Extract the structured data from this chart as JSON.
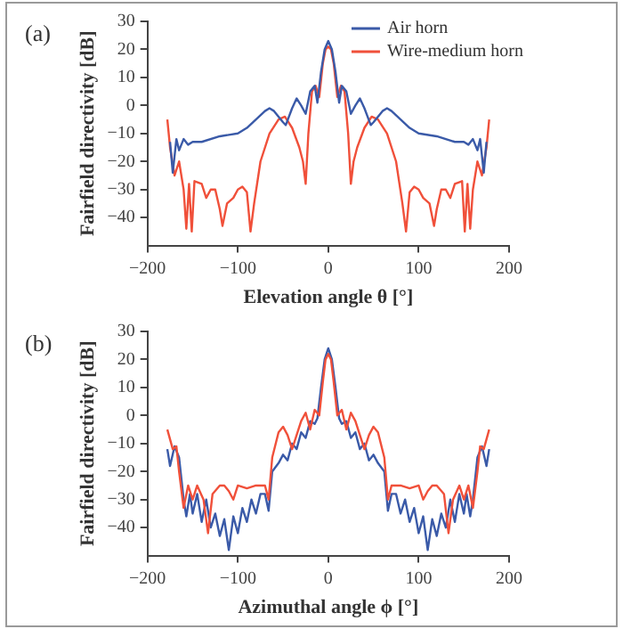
{
  "chart_data": [
    {
      "type": "line",
      "annotations": [
        "(a)"
      ],
      "xlabel": "Elevation angle θ [°]",
      "ylabel": "Fairfield directivity [dB]",
      "xlim": [
        -200,
        200
      ],
      "xticks": [
        -200,
        -100,
        0,
        100,
        200
      ],
      "ylim": [
        -50,
        30
      ],
      "yticks": [
        -40,
        -30,
        -20,
        -10,
        0,
        10,
        20,
        30
      ],
      "legend": "top right",
      "grid": false,
      "series": [
        {
          "name": "Air horn",
          "color": "#3a5aa8",
          "x": [
            -175,
            -172,
            -168,
            -165,
            -160,
            -155,
            -150,
            -140,
            -120,
            -100,
            -90,
            -80,
            -70,
            -65,
            -60,
            -50,
            -47,
            -40,
            -35,
            -30,
            -25,
            -20,
            -15,
            -12,
            -8,
            -4,
            0,
            4,
            8,
            12,
            15,
            20,
            25,
            30,
            35,
            40,
            47,
            50,
            60,
            65,
            70,
            80,
            90,
            100,
            120,
            140,
            150,
            155,
            160,
            165,
            168,
            172,
            175
          ],
          "values": [
            -13,
            -24,
            -12,
            -16,
            -12,
            -14,
            -13,
            -13,
            -11,
            -10,
            -8,
            -5,
            -2,
            -1,
            -2,
            -6,
            -7,
            -1,
            2.5,
            0,
            -3,
            5,
            7,
            1,
            12,
            20,
            23,
            20,
            12,
            1,
            7,
            5,
            -3,
            0,
            2.5,
            -1,
            -7,
            -6,
            -2,
            -1,
            -2,
            -5,
            -8,
            -10,
            -11,
            -13,
            -13,
            -14,
            -12,
            -16,
            -12,
            -24,
            -13
          ]
        },
        {
          "name": "Wire-medium horn",
          "color": "#f0503a",
          "x": [
            -178,
            -175,
            -170,
            -165,
            -160,
            -157,
            -154,
            -151,
            -148,
            -140,
            -135,
            -130,
            -125,
            -120,
            -117,
            -112,
            -105,
            -100,
            -95,
            -90,
            -86,
            -82,
            -75,
            -65,
            -55,
            -48,
            -40,
            -32,
            -28,
            -25,
            -22,
            -18,
            -14,
            -10,
            -6,
            -3,
            0,
            3,
            6,
            10,
            14,
            18,
            22,
            25,
            28,
            32,
            40,
            48,
            55,
            65,
            75,
            82,
            86,
            90,
            95,
            100,
            105,
            112,
            117,
            120,
            125,
            130,
            135,
            140,
            148,
            151,
            154,
            157,
            160,
            165,
            170,
            175,
            178
          ],
          "values": [
            -5,
            -15,
            -25,
            -20,
            -30,
            -44,
            -28,
            -45,
            -27,
            -28,
            -33,
            -30,
            -30,
            -37,
            -43,
            -35,
            -33,
            -30,
            -29,
            -31,
            -45,
            -35,
            -20,
            -10,
            -5,
            -4,
            -8,
            -15,
            -20,
            -28,
            -10,
            5,
            7,
            3,
            15,
            20,
            21,
            20,
            15,
            3,
            7,
            5,
            -10,
            -28,
            -20,
            -15,
            -8,
            -4,
            -5,
            -10,
            -20,
            -35,
            -45,
            -31,
            -29,
            -30,
            -33,
            -35,
            -43,
            -37,
            -30,
            -30,
            -33,
            -28,
            -27,
            -45,
            -28,
            -44,
            -30,
            -20,
            -25,
            -15,
            -5
          ]
        }
      ]
    },
    {
      "type": "line",
      "annotations": [
        "(b)"
      ],
      "xlabel": "Azimuthal angle ϕ [°]",
      "ylabel": "Fairfield directivity [dB]",
      "xlim": [
        -200,
        200
      ],
      "xticks": [
        -200,
        -100,
        0,
        100,
        200
      ],
      "ylim": [
        -50,
        30
      ],
      "yticks": [
        -40,
        -30,
        -20,
        -10,
        0,
        10,
        20,
        30
      ],
      "grid": false,
      "series": [
        {
          "color": "#f0503a",
          "x": [
            -178,
            -172,
            -168,
            -165,
            -160,
            -155,
            -150,
            -145,
            -138,
            -133,
            -128,
            -120,
            -115,
            -110,
            -105,
            -100,
            -90,
            -80,
            -70,
            -66,
            -62,
            -55,
            -50,
            -45,
            -40,
            -30,
            -25,
            -20,
            -15,
            -10,
            -6,
            -3,
            0,
            3,
            6,
            10,
            15,
            20,
            25,
            30,
            40,
            45,
            50,
            55,
            62,
            66,
            70,
            80,
            90,
            100,
            105,
            110,
            115,
            120,
            128,
            133,
            138,
            145,
            150,
            155,
            160,
            165,
            168,
            172,
            178
          ],
          "values": [
            -5,
            -12,
            -11,
            -20,
            -33,
            -25,
            -30,
            -25,
            -30,
            -42,
            -28,
            -25,
            -25,
            -27,
            -30,
            -25,
            -26,
            -25,
            -25,
            -30,
            -15,
            -6,
            -4,
            -7,
            -12,
            -2,
            1,
            -5,
            2,
            0,
            12,
            20,
            22,
            20,
            12,
            0,
            2,
            -5,
            1,
            -2,
            -12,
            -7,
            -4,
            -6,
            -15,
            -30,
            -25,
            -25,
            -26,
            -25,
            -30,
            -27,
            -25,
            -25,
            -28,
            -42,
            -30,
            -25,
            -30,
            -25,
            -33,
            -20,
            -11,
            -12,
            -5
          ]
        },
        {
          "color": "#3a5aa8",
          "x": [
            -178,
            -175,
            -170,
            -165,
            -160,
            -157,
            -153,
            -150,
            -145,
            -140,
            -135,
            -130,
            -125,
            -120,
            -115,
            -110,
            -105,
            -100,
            -95,
            -90,
            -85,
            -80,
            -75,
            -70,
            -66,
            -62,
            -55,
            -50,
            -45,
            -40,
            -35,
            -30,
            -25,
            -20,
            -15,
            -12,
            -8,
            -4,
            0,
            4,
            8,
            12,
            15,
            20,
            25,
            30,
            35,
            40,
            45,
            50,
            55,
            62,
            66,
            70,
            75,
            80,
            85,
            90,
            95,
            100,
            105,
            110,
            115,
            120,
            125,
            130,
            135,
            140,
            145,
            150,
            153,
            157,
            160,
            165,
            170,
            175,
            178
          ],
          "values": [
            -12,
            -18,
            -11,
            -15,
            -30,
            -36,
            -28,
            -35,
            -28,
            -38,
            -30,
            -40,
            -35,
            -43,
            -37,
            -48,
            -36,
            -42,
            -33,
            -38,
            -30,
            -35,
            -28,
            -28,
            -34,
            -20,
            -17,
            -14,
            -16,
            -10,
            -12,
            -6,
            -8,
            -2,
            -3,
            -1,
            10,
            20,
            24,
            20,
            10,
            -1,
            -3,
            -2,
            -8,
            -6,
            -12,
            -10,
            -16,
            -14,
            -17,
            -20,
            -34,
            -28,
            -28,
            -35,
            -30,
            -38,
            -33,
            -42,
            -36,
            -48,
            -37,
            -43,
            -35,
            -40,
            -30,
            -38,
            -28,
            -35,
            -28,
            -36,
            -30,
            -15,
            -11,
            -18,
            -12
          ]
        }
      ]
    }
  ]
}
